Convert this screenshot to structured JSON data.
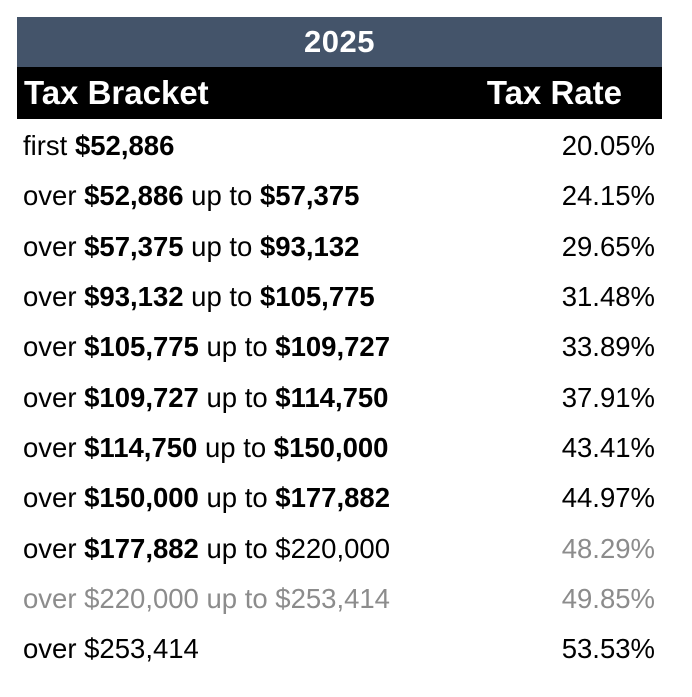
{
  "year": "2025",
  "headers": {
    "bracket": "Tax Bracket",
    "rate": "Tax Rate"
  },
  "rows": [
    {
      "parts": [
        {
          "t": "first ",
          "b": false
        },
        {
          "t": "$52,886",
          "b": true
        }
      ],
      "rate": "20.05%",
      "muted_bracket": false,
      "muted_rate": false
    },
    {
      "parts": [
        {
          "t": "over ",
          "b": false
        },
        {
          "t": "$52,886",
          "b": true
        },
        {
          "t": " up to ",
          "b": false
        },
        {
          "t": "$57,375",
          "b": true
        }
      ],
      "rate": "24.15%",
      "muted_bracket": false,
      "muted_rate": false
    },
    {
      "parts": [
        {
          "t": "over ",
          "b": false
        },
        {
          "t": "$57,375",
          "b": true
        },
        {
          "t": " up to ",
          "b": false
        },
        {
          "t": "$93,132",
          "b": true
        }
      ],
      "rate": "29.65%",
      "muted_bracket": false,
      "muted_rate": false
    },
    {
      "parts": [
        {
          "t": "over ",
          "b": false
        },
        {
          "t": "$93,132",
          "b": true
        },
        {
          "t": " up to ",
          "b": false
        },
        {
          "t": "$105,775",
          "b": true
        }
      ],
      "rate": "31.48%",
      "muted_bracket": false,
      "muted_rate": false
    },
    {
      "parts": [
        {
          "t": "over ",
          "b": false
        },
        {
          "t": "$105,775",
          "b": true
        },
        {
          "t": " up to ",
          "b": false
        },
        {
          "t": "$109,727",
          "b": true
        }
      ],
      "rate": "33.89%",
      "muted_bracket": false,
      "muted_rate": false
    },
    {
      "parts": [
        {
          "t": "over ",
          "b": false
        },
        {
          "t": "$109,727",
          "b": true
        },
        {
          "t": " up to ",
          "b": false
        },
        {
          "t": "$114,750",
          "b": true
        }
      ],
      "rate": "37.91%",
      "muted_bracket": false,
      "muted_rate": false
    },
    {
      "parts": [
        {
          "t": "over ",
          "b": false
        },
        {
          "t": "$114,750",
          "b": true
        },
        {
          "t": " up to ",
          "b": false
        },
        {
          "t": "$150,000",
          "b": true
        }
      ],
      "rate": "43.41%",
      "muted_bracket": false,
      "muted_rate": false
    },
    {
      "parts": [
        {
          "t": "over ",
          "b": false
        },
        {
          "t": "$150,000",
          "b": true
        },
        {
          "t": " up to ",
          "b": false
        },
        {
          "t": "$177,882",
          "b": true
        }
      ],
      "rate": "44.97%",
      "muted_bracket": false,
      "muted_rate": false
    },
    {
      "parts": [
        {
          "t": "over ",
          "b": false
        },
        {
          "t": "$177,882",
          "b": true
        },
        {
          "t": " up to $220,000",
          "b": false
        }
      ],
      "rate": "48.29%",
      "muted_bracket": false,
      "muted_rate": true
    },
    {
      "parts": [
        {
          "t": "over $220,000 up to $253,414",
          "b": false
        }
      ],
      "rate": "49.85%",
      "muted_bracket": true,
      "muted_rate": true
    },
    {
      "parts": [
        {
          "t": "over $253,414",
          "b": false
        }
      ],
      "rate": "53.53%",
      "muted_bracket": false,
      "muted_rate": false
    }
  ],
  "colors": {
    "year_bar": "#44546a",
    "header_bg": "#000000",
    "muted_text": "#8c8c8c"
  }
}
